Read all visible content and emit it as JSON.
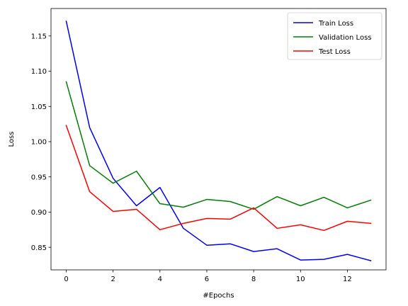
{
  "chart_data": {
    "type": "line",
    "title": "",
    "xlabel": "#Epochs",
    "ylabel": "Loss",
    "xlim": [
      -0.65,
      13.65
    ],
    "ylim": [
      0.818,
      1.189
    ],
    "xticks": [
      0,
      2,
      4,
      6,
      8,
      10,
      12
    ],
    "yticks": [
      0.85,
      0.9,
      0.95,
      1.0,
      1.05,
      1.1,
      1.15
    ],
    "grid": false,
    "legend_position": "top-right",
    "x": [
      0,
      1,
      2,
      3,
      4,
      5,
      6,
      7,
      8,
      9,
      10,
      11,
      12,
      13
    ],
    "series": [
      {
        "name": "Train Loss",
        "color": "#0000ff",
        "values": [
          1.171,
          1.02,
          0.948,
          0.909,
          0.935,
          0.877,
          0.853,
          0.855,
          0.844,
          0.848,
          0.832,
          0.833,
          0.84,
          0.831
        ]
      },
      {
        "name": "Validation Loss",
        "color": "#008000",
        "values": [
          1.085,
          0.966,
          0.941,
          0.958,
          0.912,
          0.907,
          0.918,
          0.915,
          0.904,
          0.922,
          0.909,
          0.921,
          0.906,
          0.917
        ]
      },
      {
        "name": "Test Loss",
        "color": "#ff0000",
        "values": [
          1.023,
          0.929,
          0.901,
          0.904,
          0.875,
          0.884,
          0.891,
          0.89,
          0.906,
          0.877,
          0.882,
          0.874,
          0.887,
          0.884
        ]
      }
    ]
  }
}
